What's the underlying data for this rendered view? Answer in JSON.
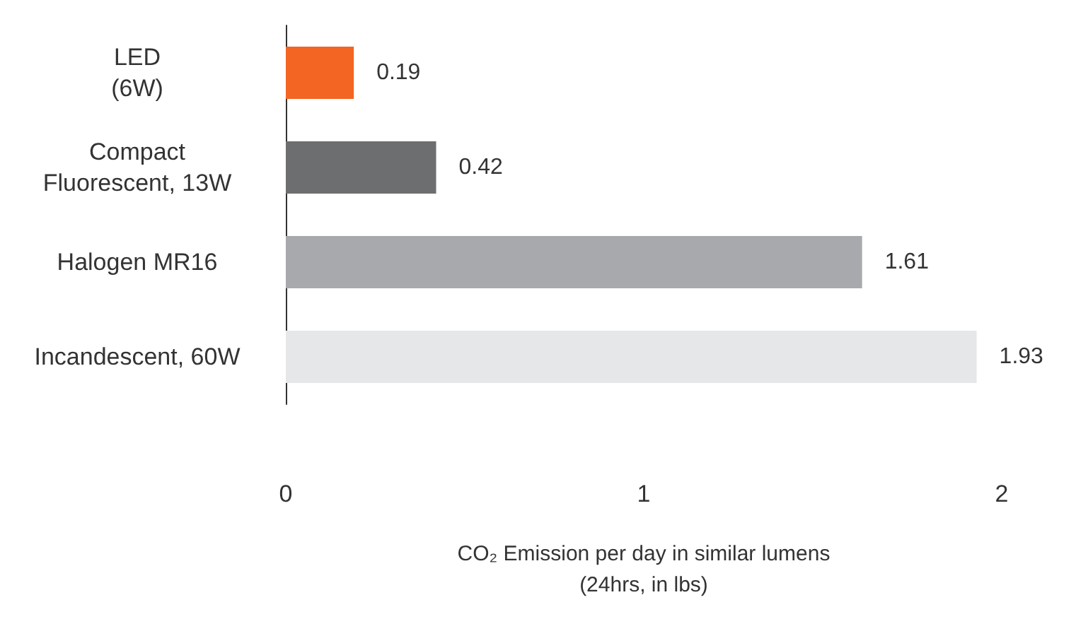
{
  "chart_data": {
    "type": "bar",
    "orientation": "horizontal",
    "categories": [
      "LED\n(6W)",
      "Compact\nFluorescent, 13W",
      "Halogen MR16",
      "Incandescent, 60W"
    ],
    "values": [
      0.19,
      0.42,
      1.61,
      1.93
    ],
    "colors": [
      "#f26522",
      "#6d6e70",
      "#a7a9ac",
      "#e6e7e8"
    ],
    "xlim": [
      0,
      2
    ],
    "xticks": [
      0,
      1,
      2
    ],
    "xlabel": "CO₂ Emission per day in similar lumens\n(24hrs, in lbs)",
    "data_labels": true,
    "grid": false
  }
}
